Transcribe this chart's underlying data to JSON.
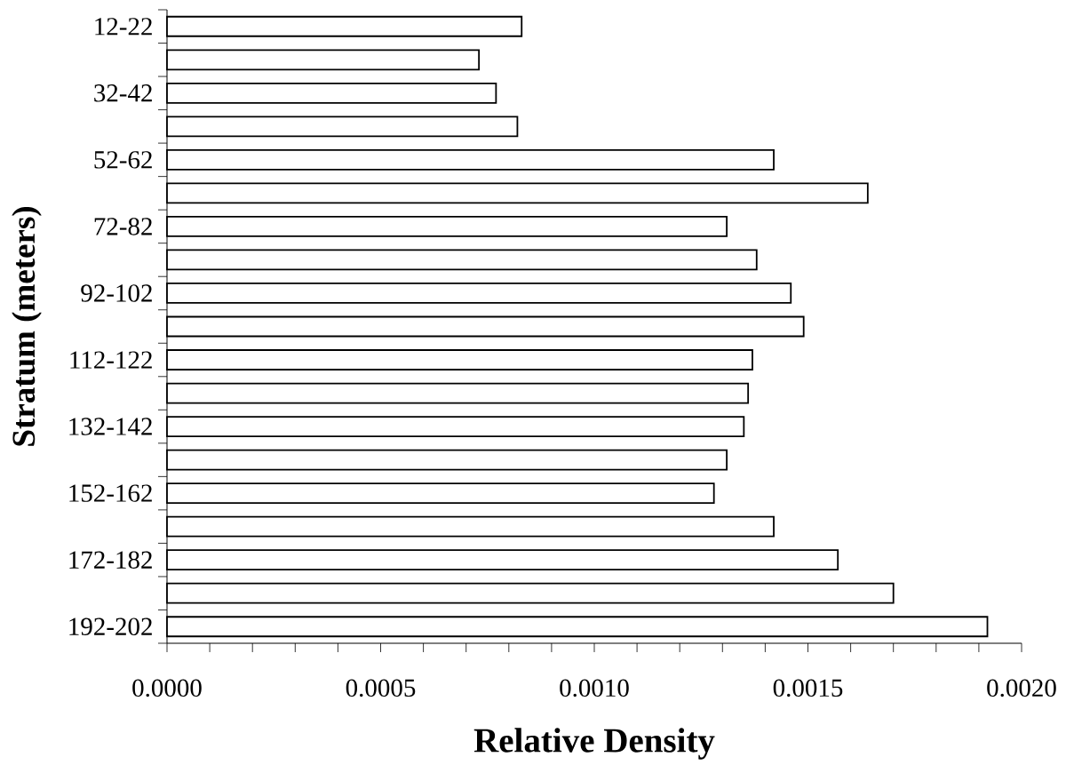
{
  "chart_data": {
    "type": "bar",
    "orientation": "horizontal",
    "xlabel": "Relative Density",
    "ylabel": "Stratum (meters)",
    "categories": [
      "12-22",
      null,
      "32-42",
      null,
      "52-62",
      null,
      "72-82",
      null,
      "92-102",
      null,
      "112-122",
      null,
      "132-142",
      null,
      "152-162",
      null,
      "172-182",
      null,
      "192-202"
    ],
    "values": [
      0.00083,
      0.00073,
      0.00077,
      0.00082,
      0.00142,
      0.00164,
      0.00131,
      0.00138,
      0.00146,
      0.00149,
      0.00137,
      0.00136,
      0.00135,
      0.00131,
      0.00128,
      0.00142,
      0.00157,
      0.0017,
      0.00192
    ],
    "color": "#ffffff",
    "xlim": [
      0,
      0.002
    ],
    "xticks": [
      {
        "value": 0,
        "label": "0.0000"
      },
      {
        "value": 0.0001,
        "label": null
      },
      {
        "value": 0.0002,
        "label": null
      },
      {
        "value": 0.0003,
        "label": null
      },
      {
        "value": 0.0004,
        "label": null
      },
      {
        "value": 0.0005,
        "label": "0.0005"
      },
      {
        "value": 0.0006,
        "label": null
      },
      {
        "value": 0.0007,
        "label": null
      },
      {
        "value": 0.0008,
        "label": null
      },
      {
        "value": 0.0009,
        "label": null
      },
      {
        "value": 0.001,
        "label": "0.0010"
      },
      {
        "value": 0.0011,
        "label": null
      },
      {
        "value": 0.0012,
        "label": null
      },
      {
        "value": 0.0013,
        "label": null
      },
      {
        "value": 0.0014,
        "label": null
      },
      {
        "value": 0.0015,
        "label": "0.0015"
      },
      {
        "value": 0.0016,
        "label": null
      },
      {
        "value": 0.0017,
        "label": null
      },
      {
        "value": 0.0018,
        "label": null
      },
      {
        "value": 0.0019,
        "label": null
      },
      {
        "value": 0.002,
        "label": "0.0020"
      }
    ]
  }
}
